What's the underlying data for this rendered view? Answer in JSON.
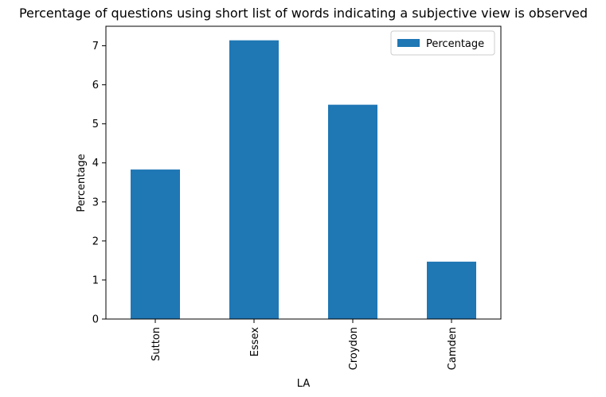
{
  "chart_data": {
    "type": "bar",
    "title": "Percentage of questions using short list of words indicating a subjective view is observed",
    "xlabel": "LA",
    "ylabel": "Percentage",
    "categories": [
      "Sutton",
      "Essex",
      "Croydon",
      "Camden"
    ],
    "series": [
      {
        "name": "Percentage",
        "values": [
          3.83,
          7.14,
          5.49,
          1.47
        ],
        "color": "#1f77b4"
      }
    ],
    "ylim": [
      0,
      7.5
    ],
    "yticks": [
      "0",
      "1",
      "2",
      "3",
      "4",
      "5",
      "6",
      "7"
    ],
    "grid": false,
    "legend": "top-right"
  }
}
